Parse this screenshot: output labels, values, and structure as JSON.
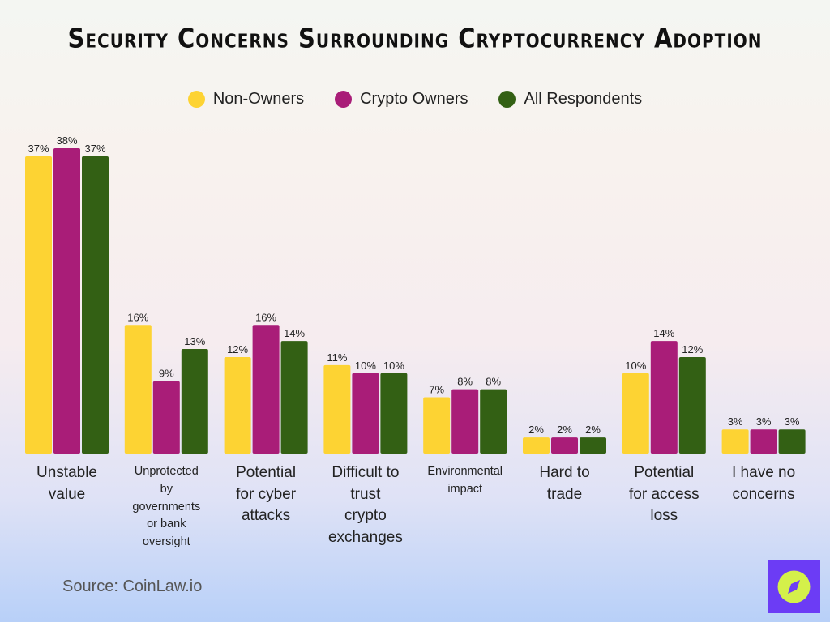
{
  "chart_data": {
    "type": "bar",
    "title": "Security Concerns Surrounding Cryptocurrency Adoption",
    "categories": [
      [
        "Unstable",
        "value"
      ],
      [
        "Unprotected",
        "by",
        "governments",
        "or bank",
        "oversight"
      ],
      [
        "Potential",
        "for cyber",
        "attacks"
      ],
      [
        "Difficult to",
        "trust",
        "crypto",
        "exchanges"
      ],
      [
        "Environmental",
        "impact"
      ],
      [
        "Hard to",
        "trade"
      ],
      [
        "Potential",
        "for access",
        "loss"
      ],
      [
        "I have no",
        "concerns"
      ]
    ],
    "series": [
      {
        "name": "Non-Owners",
        "color": "#fdd333",
        "values": [
          37,
          16,
          12,
          11,
          7,
          2,
          10,
          3
        ]
      },
      {
        "name": "Crypto Owners",
        "color": "#a91d78",
        "values": [
          38,
          9,
          16,
          10,
          8,
          2,
          14,
          3
        ]
      },
      {
        "name": "All Respondents",
        "color": "#336014",
        "values": [
          37,
          13,
          14,
          10,
          8,
          2,
          12,
          3
        ]
      }
    ],
    "value_suffix": "%",
    "ylim": [
      0,
      38
    ],
    "grid": false,
    "legend_position": "top-center"
  },
  "source": "Source: CoinLaw.io",
  "logo_icon": "compass-icon"
}
